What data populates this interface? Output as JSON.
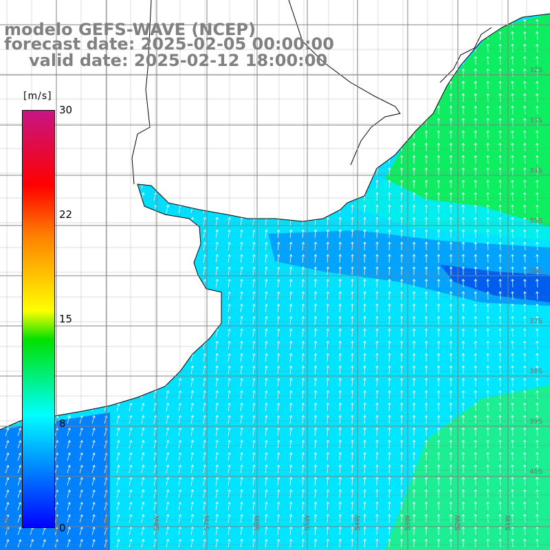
{
  "title": {
    "line1": "modelo GEFS-WAVE (NCEP)",
    "line2": "forecast date: 2025-02-05 00:00:00",
    "line3": "valid date: 2025-02-12 18:00:00"
  },
  "colorbar": {
    "unit": "[m/s]",
    "ticks": [
      "30",
      "22",
      "15",
      "8",
      "0"
    ],
    "min": 0,
    "max": 30,
    "colors": [
      "#0000ff",
      "#00bfff",
      "#00ffff",
      "#00ff00",
      "#ffff00",
      "#ff8c00",
      "#ff0000",
      "#c71585"
    ]
  },
  "map": {
    "lat_labels": [
      "32S",
      "33S",
      "34S",
      "35S",
      "36S",
      "37S",
      "38S",
      "39S",
      "40S"
    ],
    "lon_labels": [
      "61W",
      "60W",
      "59W",
      "58W",
      "57W",
      "56W",
      "55W",
      "54W",
      "53W",
      "52W",
      "51W"
    ],
    "land_color": "#ffffff",
    "coast_color": "#000000",
    "grid_color": "#808080",
    "arrow_color": "#ffffff"
  }
}
